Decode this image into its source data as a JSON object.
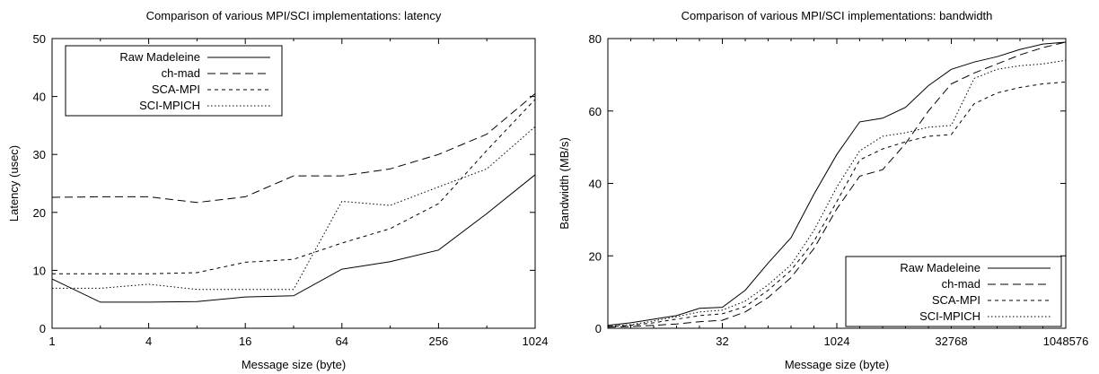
{
  "chart_data": [
    {
      "type": "line",
      "title": "Comparison of various MPI/SCI implementations: latency",
      "xlabel": "Message size (byte)",
      "ylabel": "Latency (usec)",
      "xscale": "log2",
      "xlim": [
        1,
        1024
      ],
      "ylim": [
        0,
        50
      ],
      "xticks": [
        1,
        4,
        16,
        64,
        256,
        1024
      ],
      "xtick_labels": [
        "1",
        "4",
        "16",
        "64",
        "256",
        "1024"
      ],
      "yticks": [
        0,
        10,
        20,
        30,
        40,
        50
      ],
      "ytick_labels": [
        "0",
        "10",
        "20",
        "30",
        "40",
        "50"
      ],
      "grid": false,
      "legend_position": "top-left",
      "x": [
        1,
        2,
        4,
        8,
        16,
        32,
        64,
        128,
        256,
        512,
        1024
      ],
      "series": [
        {
          "name": "Raw Madeleine",
          "dash": "solid",
          "values": [
            8.5,
            4.5,
            4.5,
            4.6,
            5.4,
            5.6,
            10.2,
            11.5,
            13.5,
            19.8,
            26.5
          ]
        },
        {
          "name": "ch-mad",
          "dash": "long-dash",
          "values": [
            22.6,
            22.7,
            22.7,
            21.7,
            22.7,
            26.3,
            26.3,
            27.5,
            30.0,
            33.5,
            40.5
          ]
        },
        {
          "name": "SCA-MPI",
          "dash": "short-dash",
          "values": [
            9.4,
            9.4,
            9.4,
            9.6,
            11.4,
            11.9,
            14.7,
            17.2,
            21.5,
            30.7,
            39.5
          ]
        },
        {
          "name": "SCI-MPICH",
          "dash": "dotted",
          "values": [
            6.9,
            6.9,
            7.6,
            6.7,
            6.7,
            6.7,
            21.9,
            21.2,
            24.4,
            27.5,
            34.8
          ]
        }
      ]
    },
    {
      "type": "line",
      "title": "Comparison of various MPI/SCI implementations: bandwidth",
      "xlabel": "Message size (byte)",
      "ylabel": "Bandwidth (MB/s)",
      "xscale": "log2",
      "xlim": [
        1,
        1048576
      ],
      "ylim": [
        0,
        80
      ],
      "xticks": [
        32,
        1024,
        32768,
        1048576
      ],
      "xtick_labels": [
        "32",
        "1024",
        "32768",
        "1048576"
      ],
      "yticks": [
        0,
        20,
        40,
        60,
        80
      ],
      "ytick_labels": [
        "0",
        "20",
        "40",
        "60",
        "80"
      ],
      "grid": false,
      "legend_position": "bottom-right",
      "x": [
        1,
        2,
        4,
        8,
        16,
        32,
        64,
        128,
        256,
        512,
        1024,
        2048,
        4096,
        8192,
        16384,
        32768,
        65536,
        131072,
        262144,
        524288,
        1048576
      ],
      "series": [
        {
          "name": "Raw Madeleine",
          "dash": "solid",
          "values": [
            0.8,
            1.5,
            2.5,
            3.5,
            5.5,
            5.8,
            10.5,
            18.0,
            25.0,
            37.0,
            48.0,
            57.0,
            58.0,
            61.0,
            67.0,
            71.5,
            73.5,
            75.0,
            77.0,
            78.5,
            79.0
          ]
        },
        {
          "name": "ch-mad",
          "dash": "long-dash",
          "values": [
            0.3,
            0.5,
            0.8,
            1.2,
            1.8,
            2.2,
            4.5,
            8.5,
            14.0,
            22.0,
            33.0,
            42.0,
            43.8,
            51.0,
            60.0,
            67.5,
            70.5,
            73.0,
            75.5,
            77.5,
            79.0
          ]
        },
        {
          "name": "SCA-MPI",
          "dash": "short-dash",
          "values": [
            0.5,
            0.8,
            1.5,
            2.5,
            3.5,
            4.0,
            6.0,
            10.5,
            16.0,
            24.0,
            35.0,
            46.5,
            49.5,
            51.5,
            53.0,
            53.5,
            62.0,
            65.0,
            66.5,
            67.5,
            68.0
          ]
        },
        {
          "name": "SCI-MPICH",
          "dash": "dotted",
          "values": [
            0.6,
            1.0,
            2.0,
            3.2,
            4.5,
            5.0,
            7.5,
            12.0,
            17.5,
            27.0,
            39.0,
            49.0,
            53.0,
            54.0,
            55.5,
            56.0,
            69.0,
            71.5,
            72.5,
            73.0,
            74.0
          ]
        }
      ]
    }
  ]
}
